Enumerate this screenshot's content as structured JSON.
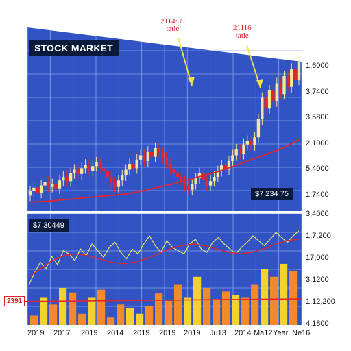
{
  "title": "STOCK MARKET",
  "annotations": [
    "2114:39\ntatle",
    "21116\ntatle"
  ],
  "upper_value_label": "$7 234 75",
  "lower_value_label": "$7 30449",
  "left_tag": "2391",
  "colors": {
    "panel_bg": "#3153c4",
    "grid": "#8aa2e8",
    "up": "#f5e79a",
    "down": "#e8232a",
    "ma_line": "#e4232b",
    "osc_line": "#e8e86a",
    "vol_orange": "#f08a2a",
    "vol_yellow": "#f3d22e",
    "label_bg": "#0a1a3c",
    "annotation": "#e0202a"
  },
  "chart_data": [
    {
      "type": "candlestick",
      "title": "STOCK MARKET",
      "y_tick_labels": [
        "1,6000",
        "3,7400",
        "3,5800",
        "2,1000",
        "5,4000",
        "1,7400"
      ],
      "closes": [
        20,
        25,
        18,
        28,
        33,
        26,
        30,
        24,
        35,
        40,
        34,
        45,
        50,
        44,
        52,
        57,
        48,
        55,
        60,
        52,
        48,
        40,
        32,
        26,
        35,
        42,
        50,
        58,
        52,
        64,
        70,
        62,
        75,
        68,
        80,
        74,
        66,
        58,
        50,
        45,
        40,
        34,
        28,
        22,
        30,
        38,
        45,
        36,
        28,
        34,
        40,
        48,
        56,
        50,
        62,
        70,
        78,
        72,
        85,
        90,
        84,
        95,
        120,
        150,
        135,
        160,
        145,
        170,
        155,
        180,
        165,
        190,
        175,
        200
      ],
      "moving_average": [
        5,
        6,
        8,
        10,
        12,
        14,
        16,
        20,
        25,
        30,
        36,
        42,
        48,
        56,
        64,
        72,
        80,
        92
      ]
    },
    {
      "type": "volume",
      "y_tick_labels": [
        "3,4000",
        "1,7,200",
        "17,000",
        "3,1200",
        "1,12,200",
        "4,1800"
      ],
      "x_tick_labels": [
        "2019",
        "2017",
        "2019",
        "2014",
        "2019",
        "2019",
        "2019",
        "Ju13",
        "2014",
        "Ma12",
        "Year",
        "Ne16"
      ],
      "volumes": [
        10,
        30,
        22,
        40,
        35,
        12,
        30,
        38,
        8,
        22,
        18,
        12,
        20,
        34,
        26,
        44,
        30,
        52,
        40,
        28,
        36,
        32,
        30,
        44,
        60,
        52,
        66,
        58
      ],
      "oscillator": [
        20,
        35,
        48,
        40,
        55,
        45,
        62,
        58,
        50,
        64,
        56,
        70,
        62,
        54,
        66,
        72,
        60,
        52,
        64,
        58,
        70,
        80,
        68,
        60,
        74,
        66,
        62,
        58,
        70,
        76,
        64,
        60,
        72,
        78,
        70,
        64,
        58,
        66,
        72,
        80,
        74,
        68,
        76,
        84,
        78,
        72,
        80,
        86
      ],
      "signal_line": [
        30,
        40,
        50,
        56,
        58,
        56,
        52,
        48,
        46,
        48,
        52,
        58,
        64,
        68,
        70,
        68,
        64,
        60,
        58,
        60,
        64,
        70,
        74,
        76
      ]
    }
  ]
}
